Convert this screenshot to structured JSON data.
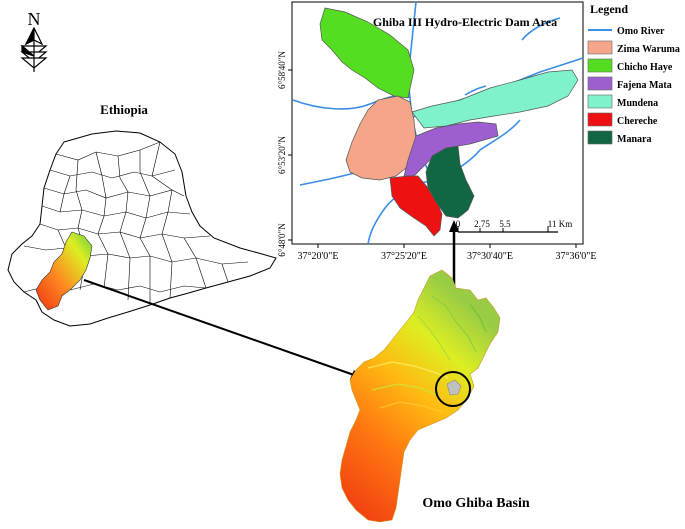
{
  "north_arrow": {
    "label": "N"
  },
  "ethiopia_map": {
    "title": "Ethiopia"
  },
  "dam_map": {
    "title": "Ghiba III Hydro-Electric Dam Area",
    "y_ticks": [
      "6°58'40\"N",
      "6°53'20\"N",
      "6°48'0\"N"
    ],
    "x_ticks": [
      "37°20'0\"E",
      "37°25'20\"E",
      "37°30'40\"E",
      "37°36'0\"E"
    ],
    "scale": {
      "labels": [
        "0",
        "2.75",
        "5.5",
        "11 Km"
      ]
    }
  },
  "legend": {
    "title": "Legend",
    "items": [
      {
        "label": "Omo River",
        "color": "#3a8ee6",
        "kind": "line"
      },
      {
        "label": "Zima Waruma",
        "color": "#f4a58a",
        "kind": "patch"
      },
      {
        "label": "Chicho Haye",
        "color": "#55dd22",
        "kind": "patch"
      },
      {
        "label": "Fajena Mata",
        "color": "#9d5fd0",
        "kind": "patch"
      },
      {
        "label": "Mundena",
        "color": "#7ff2cc",
        "kind": "patch"
      },
      {
        "label": "Chereche",
        "color": "#ee1111",
        "kind": "patch"
      },
      {
        "label": "Manara",
        "color": "#116644",
        "kind": "patch"
      }
    ]
  },
  "basin": {
    "title": "Omo Ghiba Basin"
  }
}
